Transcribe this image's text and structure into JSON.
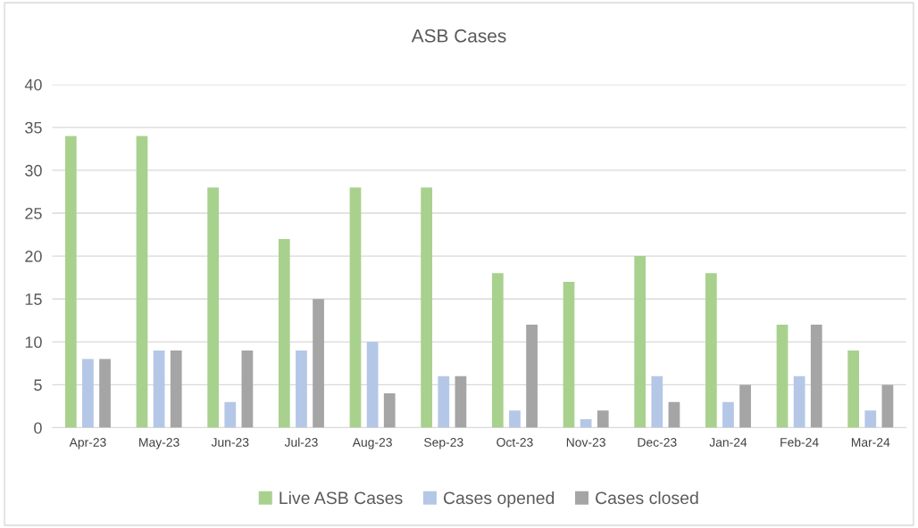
{
  "chart_data": {
    "type": "bar",
    "title": "ASB Cases",
    "categories": [
      "Apr-23",
      "May-23",
      "Jun-23",
      "Jul-23",
      "Aug-23",
      "Sep-23",
      "Oct-23",
      "Nov-23",
      "Dec-23",
      "Jan-24",
      "Feb-24",
      "Mar-24"
    ],
    "series": [
      {
        "name": "Live ASB Cases",
        "color": "#a9d18e",
        "values": [
          34,
          34,
          28,
          22,
          28,
          28,
          18,
          17,
          20,
          18,
          12,
          9
        ]
      },
      {
        "name": "Cases opened",
        "color": "#b4c7e7",
        "values": [
          8,
          9,
          3,
          9,
          10,
          6,
          2,
          1,
          6,
          3,
          6,
          2
        ]
      },
      {
        "name": "Cases closed",
        "color": "#a5a5a5",
        "values": [
          8,
          9,
          9,
          15,
          4,
          6,
          12,
          2,
          3,
          5,
          12,
          5
        ]
      }
    ],
    "ylim": [
      0,
      40
    ],
    "yticks": [
      0,
      5,
      10,
      15,
      20,
      25,
      30,
      35,
      40
    ],
    "grid": "y",
    "legend": "bottom"
  }
}
